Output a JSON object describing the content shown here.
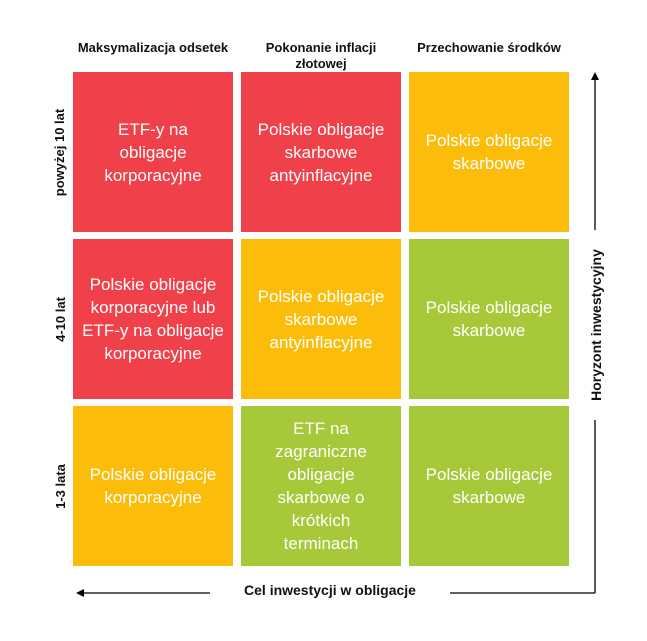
{
  "columns": [
    {
      "label": "Maksymalizacja odsetek"
    },
    {
      "label": "Pokonanie inflacji złotowej"
    },
    {
      "label": "Przechowanie środków"
    }
  ],
  "rows": [
    {
      "label": "powyżej 10 lat"
    },
    {
      "label": "4-10 lat"
    },
    {
      "label": "1-3 lata"
    }
  ],
  "cells": [
    [
      {
        "text": "ETF-y na obligacje korporacyjne",
        "color": "#f0404a"
      },
      {
        "text": "Polskie obligacje skarbowe antyinflacyjne",
        "color": "#f0404a"
      },
      {
        "text": "Polskie obligacje skarbowe",
        "color": "#fcbd0a"
      }
    ],
    [
      {
        "text": "Polskie obligacje korporacyjne lub ETF-y na obligacje korporacyjne",
        "color": "#f0404a"
      },
      {
        "text": "Polskie obligacje skarbowe antyinflacyjne",
        "color": "#fcbd0a"
      },
      {
        "text": "Polskie obligacje skarbowe",
        "color": "#a6c93a"
      }
    ],
    [
      {
        "text": "Polskie obligacje korporacyjne",
        "color": "#fcbd0a"
      },
      {
        "text": "ETF na zagraniczne obligacje skarbowe o krótkich terminach",
        "color": "#a6c93a"
      },
      {
        "text": "Polskie obligacje skarbowe",
        "color": "#a6c93a"
      }
    ]
  ],
  "axes": {
    "x_label": "Cel inwestycji w obligacje",
    "y_label": "Horyzont inwestycyjny"
  }
}
